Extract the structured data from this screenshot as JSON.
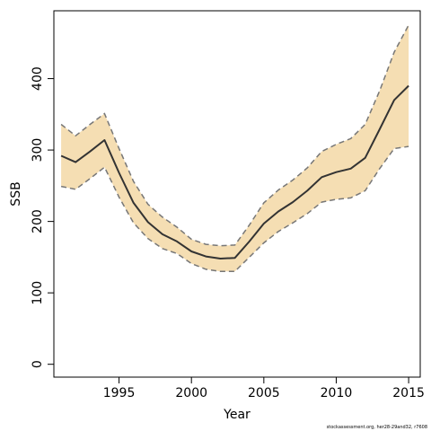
{
  "colors": {
    "band_fill": "#f5deb3",
    "band_line": "#777777",
    "series_line": "#333333",
    "axis": "#000000"
  },
  "chart_data": {
    "type": "line",
    "title": "",
    "xlabel": "Year",
    "ylabel": "SSB",
    "xlim": [
      1990.5,
      2015.8
    ],
    "ylim": [
      -18,
      495
    ],
    "x_ticks": [
      1995,
      2000,
      2005,
      2010,
      2015
    ],
    "y_ticks": [
      0,
      100,
      200,
      300,
      400
    ],
    "x": [
      1991,
      1992,
      1993,
      1994,
      1995,
      1996,
      1997,
      1998,
      1999,
      2000,
      2001,
      2002,
      2003,
      2004,
      2005,
      2006,
      2007,
      2008,
      2009,
      2010,
      2011,
      2012,
      2013,
      2014,
      2015
    ],
    "series": [
      {
        "values": [
          292,
          283,
          298,
          314,
          268,
          226,
          199,
          182,
          172,
          158,
          151,
          148,
          149,
          172,
          197,
          214,
          227,
          243,
          262,
          269,
          274,
          289,
          329,
          370,
          390
        ]
      }
    ],
    "band": {
      "lower": [
        249,
        245,
        260,
        276,
        234,
        198,
        176,
        162,
        155,
        141,
        133,
        130,
        130,
        150,
        170,
        186,
        198,
        211,
        227,
        231,
        233,
        243,
        274,
        302,
        305
      ],
      "upper": [
        336,
        320,
        336,
        351,
        302,
        256,
        224,
        206,
        192,
        175,
        168,
        166,
        167,
        195,
        226,
        244,
        258,
        275,
        298,
        308,
        316,
        336,
        383,
        437,
        475
      ]
    },
    "grid": false,
    "legend": "none"
  },
  "footnote": "stockassessment.org, her28-29and32, r7608"
}
